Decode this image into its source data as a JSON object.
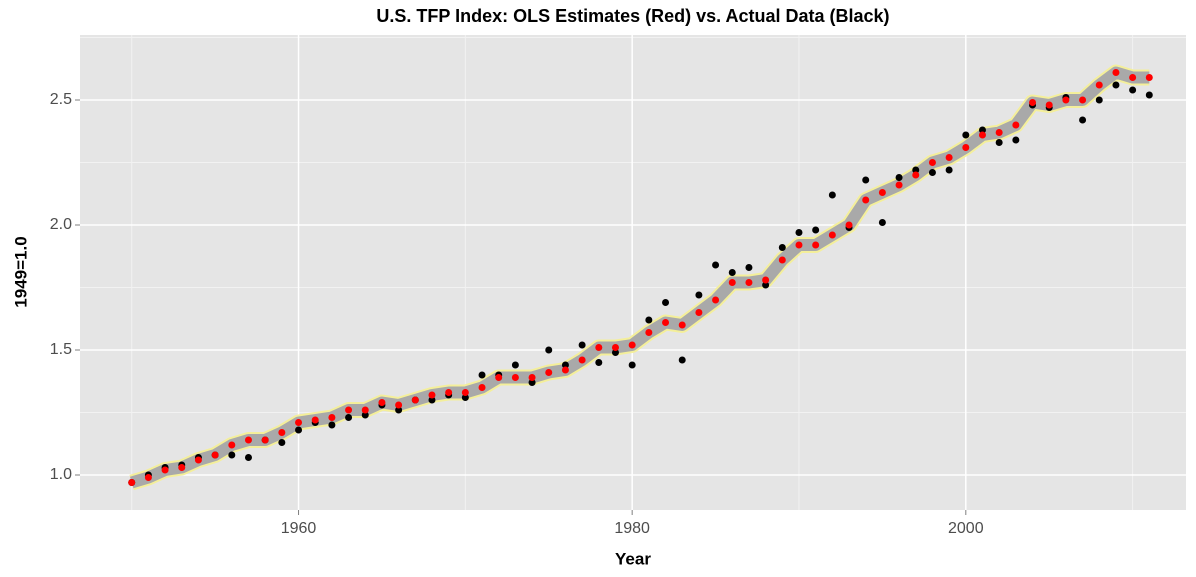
{
  "chart_data": {
    "type": "line_scatter",
    "title": "U.S. TFP Index: OLS Estimates (Red) vs. Actual Data (Black)",
    "x_label": "Year",
    "y_label": "1949=1.0",
    "x": [
      1950,
      1951,
      1952,
      1953,
      1954,
      1955,
      1956,
      1957,
      1958,
      1959,
      1960,
      1961,
      1962,
      1963,
      1964,
      1965,
      1966,
      1967,
      1968,
      1969,
      1970,
      1971,
      1972,
      1973,
      1974,
      1975,
      1976,
      1977,
      1978,
      1979,
      1980,
      1981,
      1982,
      1983,
      1984,
      1985,
      1986,
      1987,
      1988,
      1989,
      1990,
      1991,
      1992,
      1993,
      1994,
      1995,
      1996,
      1997,
      1998,
      1999,
      2000,
      2001,
      2002,
      2003,
      2004,
      2005,
      2006,
      2007,
      2008,
      2009,
      2010,
      2011
    ],
    "series": [
      {
        "color": "#ff0000",
        "ribbon": true,
        "values": [
          0.97,
          0.99,
          1.02,
          1.03,
          1.06,
          1.08,
          1.12,
          1.14,
          1.14,
          1.17,
          1.21,
          1.22,
          1.23,
          1.26,
          1.26,
          1.29,
          1.28,
          1.3,
          1.32,
          1.33,
          1.33,
          1.35,
          1.39,
          1.39,
          1.39,
          1.41,
          1.42,
          1.46,
          1.51,
          1.51,
          1.52,
          1.57,
          1.61,
          1.6,
          1.65,
          1.7,
          1.77,
          1.77,
          1.78,
          1.86,
          1.92,
          1.92,
          1.96,
          2.0,
          2.1,
          2.13,
          2.16,
          2.2,
          2.25,
          2.27,
          2.31,
          2.36,
          2.37,
          2.4,
          2.49,
          2.48,
          2.5,
          2.5,
          2.56,
          2.61,
          2.59,
          2.59
        ]
      },
      {
        "color": "#000000",
        "ribbon": false,
        "values": [
          0.97,
          1.0,
          1.03,
          1.04,
          1.07,
          1.08,
          1.08,
          1.07,
          1.14,
          1.13,
          1.18,
          1.21,
          1.2,
          1.23,
          1.24,
          1.28,
          1.26,
          1.3,
          1.3,
          1.32,
          1.31,
          1.4,
          1.4,
          1.44,
          1.37,
          1.5,
          1.44,
          1.52,
          1.45,
          1.49,
          1.44,
          1.62,
          1.69,
          1.46,
          1.72,
          1.84,
          1.81,
          1.83,
          1.76,
          1.91,
          1.97,
          1.98,
          2.12,
          1.99,
          2.18,
          2.01,
          2.19,
          2.22,
          2.21,
          2.22,
          2.36,
          2.38,
          2.33,
          2.34,
          2.48,
          2.47,
          2.51,
          2.42,
          2.5,
          2.56,
          2.54,
          2.52
        ]
      }
    ],
    "xlim": [
      1946.9,
      2013.2
    ],
    "ylim": [
      0.86,
      2.76
    ],
    "xticks": [
      1960,
      1980,
      2000
    ],
    "yticks": [
      {
        "value": 1,
        "label": "1.0"
      },
      1.5,
      {
        "value": 2,
        "label": "2.0"
      },
      2.5
    ],
    "grid": true,
    "panel_color": "#e5e5e5"
  }
}
